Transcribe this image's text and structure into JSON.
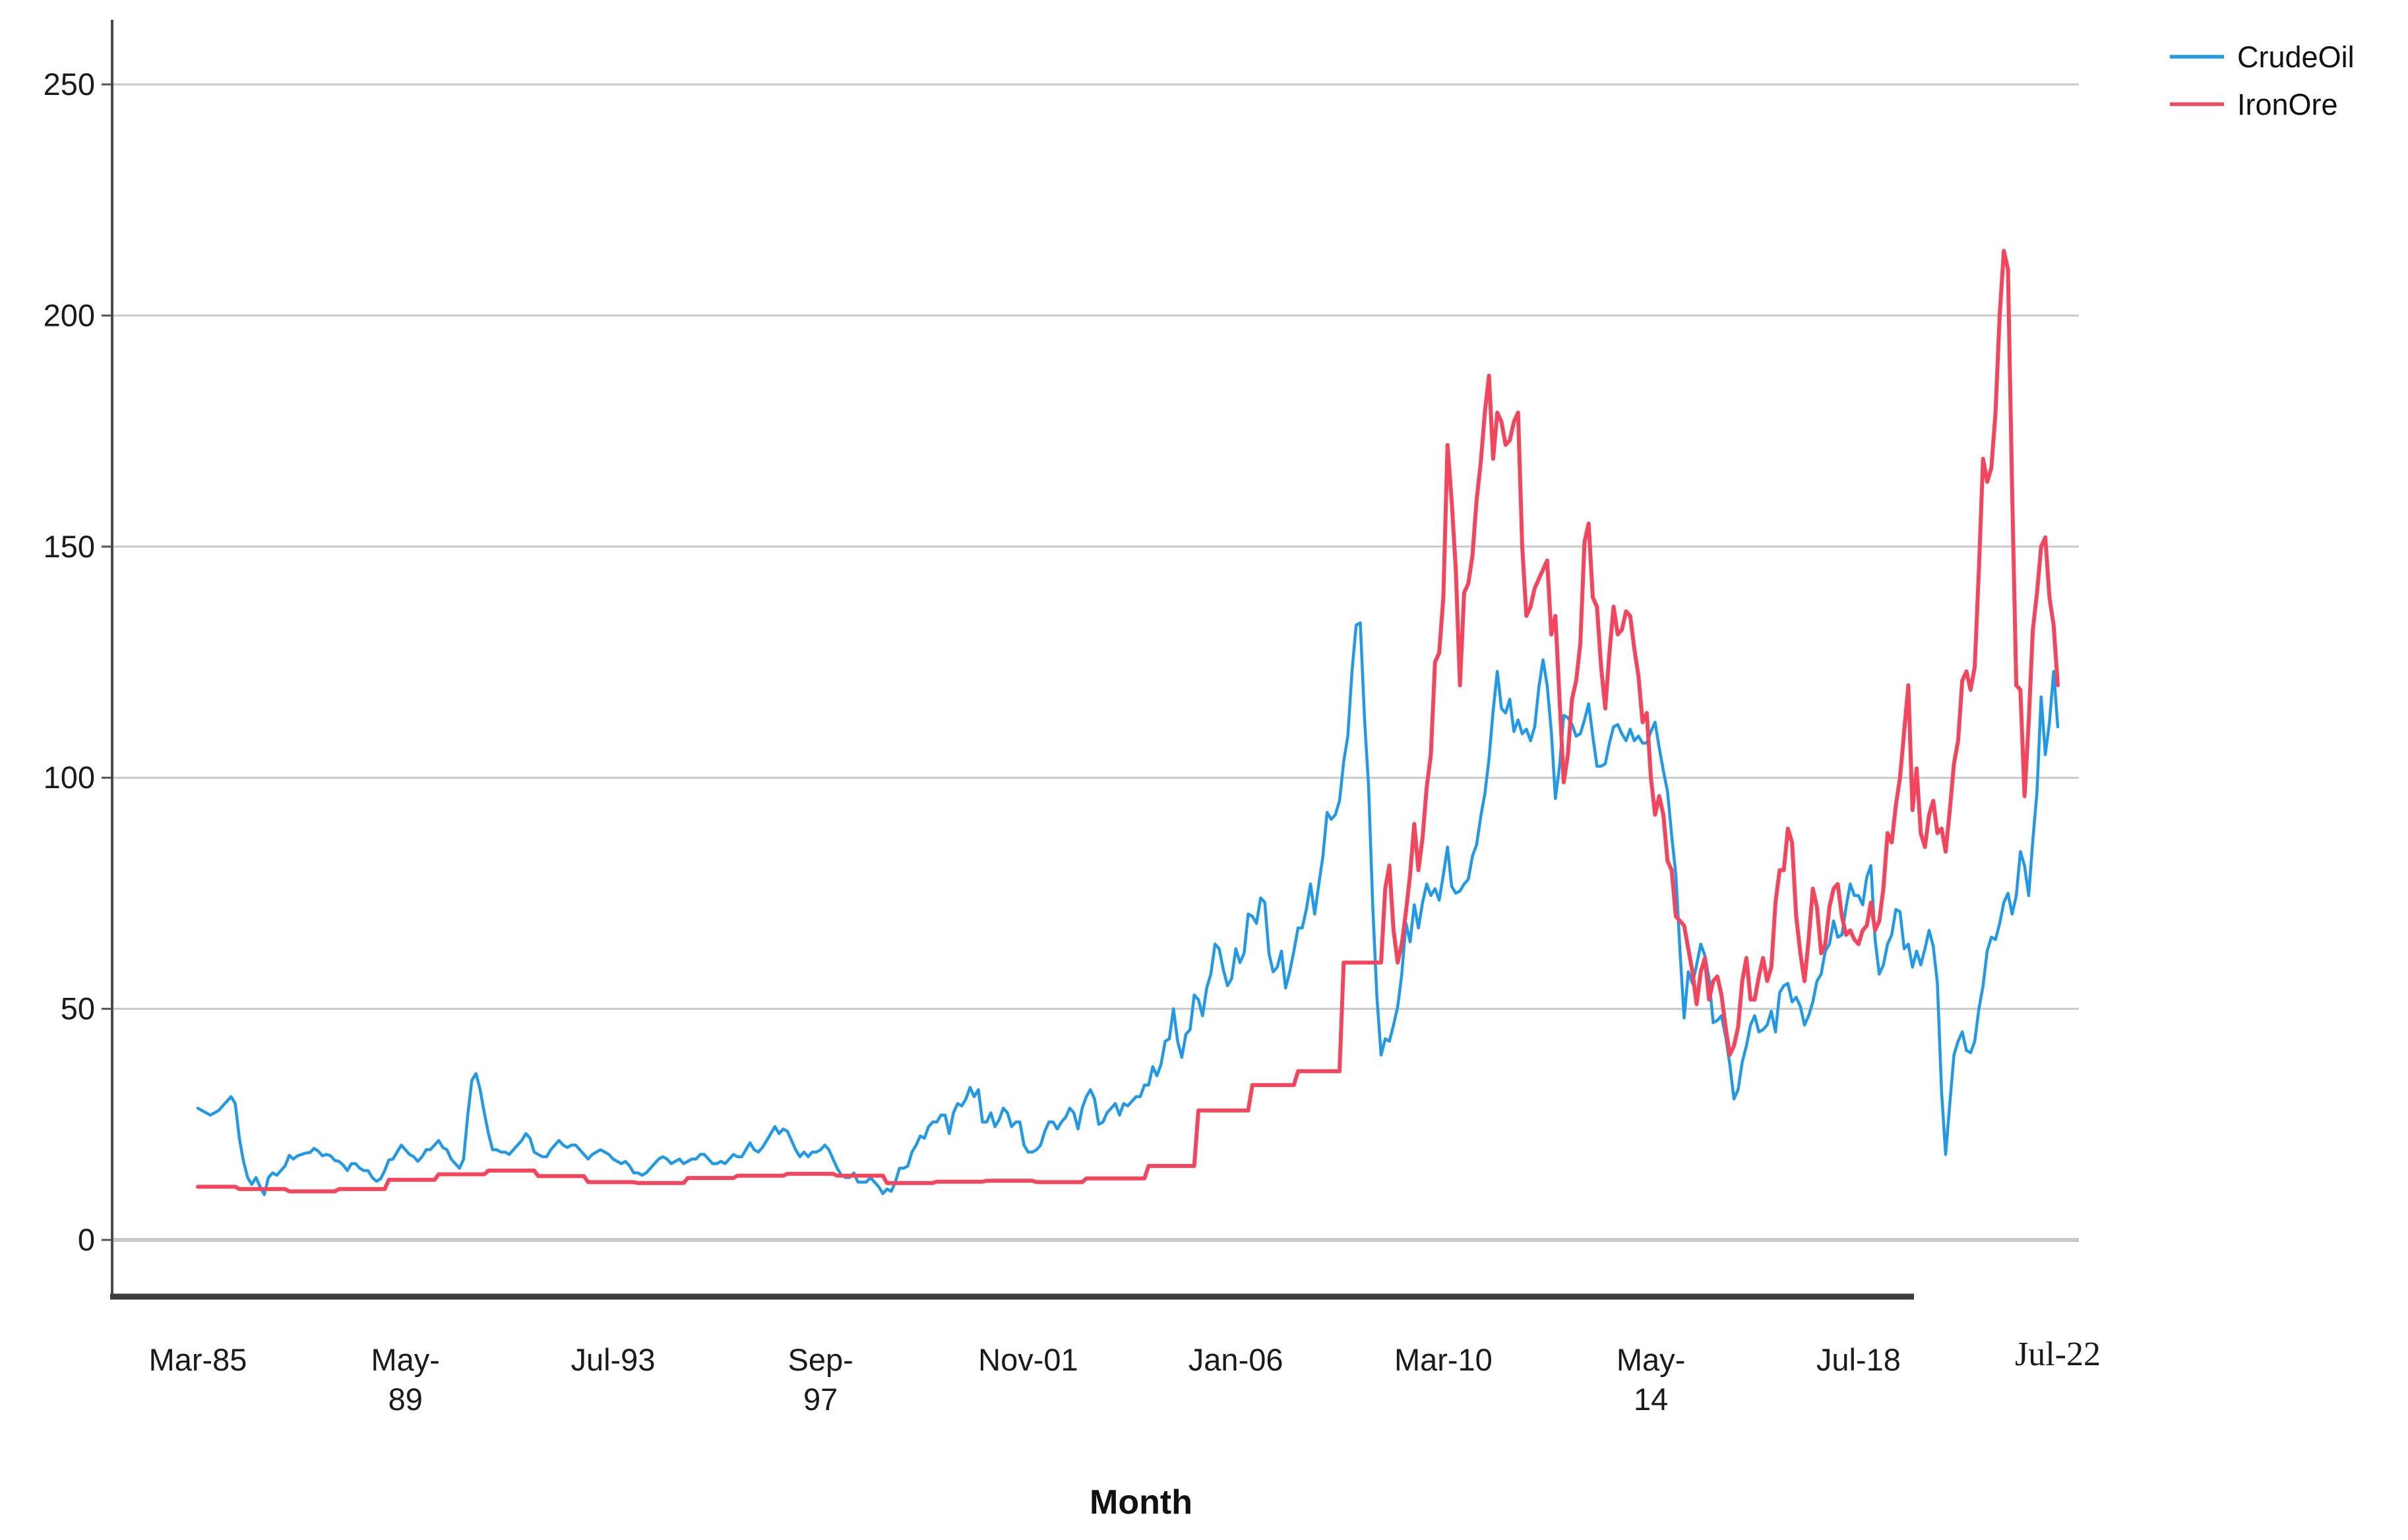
{
  "chart_data": {
    "type": "line",
    "title": "",
    "xlabel": "Month",
    "ylabel": "",
    "frequency": "monthly",
    "x_start": "Mar-1985",
    "x_end": "Jul-2022",
    "ylim": [
      0,
      262
    ],
    "y_ticks": [
      0,
      50,
      100,
      150,
      200,
      250
    ],
    "grid": "horizontal-only",
    "legend_position": "top-right",
    "axis_color": "#3d3d3d",
    "gridline_color": "#c9c9c9",
    "x_tick_months_from_start": [
      0,
      50,
      100,
      150,
      200,
      250,
      300,
      350,
      400,
      448
    ],
    "x_tick_labels": [
      [
        "Mar-85"
      ],
      [
        "May-",
        "89"
      ],
      [
        "Jul-93"
      ],
      [
        "Sep-",
        "97"
      ],
      [
        "Nov-01"
      ],
      [
        "Jan-06"
      ],
      [
        "Mar-10"
      ],
      [
        "May-",
        "14"
      ],
      [
        "Jul-18"
      ],
      [
        "Jul-22"
      ]
    ],
    "series": [
      {
        "name": "CrudeOil",
        "color": "#2099E8",
        "values": [
          28.5,
          28,
          27.5,
          27,
          27.5,
          28,
          29,
          30,
          31,
          29.5,
          22,
          17,
          13.5,
          12,
          13.5,
          11.5,
          9.8,
          13.5,
          14.5,
          14,
          15,
          16,
          18.3,
          17.5,
          18.2,
          18.5,
          18.8,
          18.9,
          19.8,
          19.2,
          18.2,
          18.5,
          18.2,
          17.2,
          17,
          16.2,
          15,
          16.5,
          16.5,
          15.5,
          15,
          15,
          13.5,
          12.7,
          13.2,
          15,
          17.3,
          17.5,
          19,
          20.5,
          19.5,
          18.5,
          18,
          17,
          18,
          19.5,
          19.5,
          20.5,
          21.5,
          20,
          19.5,
          17.5,
          16.5,
          15.5,
          17.5,
          27,
          34.5,
          36,
          32.5,
          27.5,
          23,
          19.5,
          19.5,
          19,
          19,
          18.5,
          19.5,
          20.5,
          21.5,
          23,
          22,
          19,
          18.5,
          18,
          18,
          19.5,
          20.5,
          21.5,
          20.5,
          20,
          20.5,
          20.5,
          19.5,
          18.5,
          17.5,
          18.5,
          19,
          19.5,
          19,
          18.5,
          17.5,
          17,
          16.5,
          17,
          16,
          14.5,
          14.5,
          14,
          14.5,
          15.5,
          16.5,
          17.5,
          18,
          17.5,
          16.5,
          17,
          17.5,
          16.5,
          17,
          17.5,
          17.5,
          18.5,
          18.5,
          17.5,
          16.5,
          16.5,
          17,
          16.5,
          17.5,
          18.5,
          18,
          18,
          19.5,
          21,
          19.5,
          19,
          20,
          21.5,
          23,
          24.5,
          23,
          24,
          23.5,
          21.5,
          19.5,
          18,
          19,
          18,
          19,
          19,
          19.5,
          20.5,
          19.5,
          17.5,
          15.5,
          14,
          13.5,
          13.5,
          14.5,
          12.5,
          12.5,
          12.5,
          13.5,
          12.5,
          11.5,
          10,
          11,
          10.5,
          12.5,
          15.5,
          15.5,
          16,
          19,
          20.5,
          22.5,
          22,
          24.5,
          25.5,
          25.5,
          27,
          27,
          23,
          27.5,
          29.5,
          29,
          30.5,
          33,
          31,
          32.5,
          25.5,
          25.5,
          27.5,
          24.5,
          26,
          28.5,
          27.5,
          24.5,
          25.5,
          25.5,
          20.5,
          19,
          19,
          19.5,
          20.5,
          23.5,
          25.5,
          25.5,
          24,
          25.5,
          26.5,
          28.5,
          27.5,
          24,
          28.5,
          31,
          32.5,
          30.5,
          25,
          25.5,
          27.5,
          28.5,
          29.5,
          27,
          29.5,
          29,
          30,
          31,
          31,
          33.5,
          33.5,
          37.5,
          35.5,
          38,
          43,
          43.5,
          50,
          43,
          39.5,
          44.5,
          45.5,
          53,
          52,
          48.5,
          54.5,
          57.5,
          64,
          63,
          58.5,
          55,
          56.5,
          63,
          60,
          62,
          70.5,
          70,
          68.5,
          74,
          73,
          62,
          58,
          59,
          62.5,
          54.5,
          58,
          62.5,
          67.5,
          67.5,
          71.5,
          77,
          70.5,
          77,
          83,
          92.5,
          91,
          92,
          95,
          103.5,
          109,
          123,
          133,
          133.5,
          113,
          98,
          72,
          52.5,
          40,
          43.5,
          43,
          46.5,
          50.5,
          57.5,
          68.5,
          64.5,
          72.5,
          67.5,
          73,
          77,
          74.5,
          76,
          73.5,
          79,
          85,
          76.5,
          75,
          75.5,
          77,
          78,
          83,
          85.5,
          91.5,
          96.5,
          104,
          114.5,
          123,
          115,
          114,
          117,
          110,
          112.5,
          109.5,
          110.5,
          108,
          111,
          119.5,
          125.5,
          120,
          110,
          95.5,
          102.5,
          113.5,
          113,
          111.5,
          109,
          109.5,
          112.5,
          116,
          109,
          102.5,
          102.5,
          103,
          107.5,
          111,
          111.5,
          109.5,
          108,
          110.5,
          108,
          109,
          107.5,
          107.5,
          110,
          112,
          106.5,
          101.5,
          97,
          87.5,
          79,
          62.5,
          48,
          58,
          55.5,
          59.5,
          64,
          61.5,
          56.5,
          47,
          47.5,
          48.5,
          44,
          38,
          30.5,
          32.5,
          38.5,
          42,
          46.5,
          48.5,
          45,
          45.5,
          46.5,
          49.5,
          45,
          53.5,
          55,
          55.5,
          51.5,
          52.5,
          50.5,
          46.5,
          48.5,
          51.5,
          56,
          57.5,
          62.5,
          64,
          69,
          65.5,
          66,
          72,
          77,
          74.5,
          74.5,
          72.5,
          78.5,
          81,
          65,
          57.5,
          59.5,
          64,
          66,
          71.5,
          71,
          63,
          64,
          59,
          62.5,
          59.5,
          63,
          67,
          63.5,
          55.5,
          32,
          18.5,
          29.5,
          40,
          43,
          45,
          41,
          40.5,
          43,
          50,
          55,
          62.5,
          65.5,
          65,
          68.5,
          73,
          75,
          70.5,
          74.5,
          84,
          81,
          74.5,
          86.5,
          97,
          117.5,
          105,
          112,
          123,
          111
        ]
      },
      {
        "name": "IronOre",
        "color": "#F5455C",
        "values": [
          11.5,
          11.5,
          11.5,
          11.5,
          11.5,
          11.5,
          11.5,
          11.5,
          11.5,
          11.5,
          11,
          11,
          11,
          11,
          11,
          11,
          11,
          11,
          11,
          11,
          11,
          11,
          10.5,
          10.5,
          10.5,
          10.5,
          10.5,
          10.5,
          10.5,
          10.5,
          10.5,
          10.5,
          10.5,
          10.5,
          11,
          11,
          11,
          11,
          11,
          11,
          11,
          11,
          11,
          11,
          11,
          11,
          13,
          13,
          13,
          13,
          13,
          13,
          13,
          13,
          13,
          13,
          13,
          13,
          14.2,
          14.2,
          14.2,
          14.2,
          14.2,
          14.2,
          14.2,
          14.2,
          14.2,
          14.2,
          14.2,
          14.2,
          15,
          15,
          15,
          15,
          15,
          15,
          15,
          15,
          15,
          15,
          15,
          15,
          13.8,
          13.8,
          13.8,
          13.8,
          13.8,
          13.8,
          13.8,
          13.8,
          13.8,
          13.8,
          13.8,
          13.8,
          12.5,
          12.5,
          12.5,
          12.5,
          12.5,
          12.5,
          12.5,
          12.5,
          12.5,
          12.5,
          12.5,
          12.5,
          12.3,
          12.3,
          12.3,
          12.3,
          12.3,
          12.3,
          12.3,
          12.3,
          12.3,
          12.3,
          12.3,
          12.3,
          13.4,
          13.4,
          13.4,
          13.4,
          13.4,
          13.4,
          13.4,
          13.4,
          13.4,
          13.4,
          13.4,
          13.4,
          13.9,
          13.9,
          13.9,
          13.9,
          13.9,
          13.9,
          13.9,
          13.9,
          13.9,
          13.9,
          13.9,
          13.9,
          14.3,
          14.3,
          14.3,
          14.3,
          14.3,
          14.3,
          14.3,
          14.3,
          14.3,
          14.3,
          14.3,
          14.3,
          13.9,
          13.9,
          13.9,
          13.9,
          13.9,
          13.9,
          13.9,
          13.9,
          13.9,
          13.9,
          13.9,
          13.9,
          12.3,
          12.3,
          12.3,
          12.3,
          12.3,
          12.3,
          12.3,
          12.3,
          12.3,
          12.3,
          12.3,
          12.3,
          12.6,
          12.6,
          12.6,
          12.6,
          12.6,
          12.6,
          12.6,
          12.6,
          12.6,
          12.6,
          12.6,
          12.6,
          12.8,
          12.8,
          12.8,
          12.8,
          12.8,
          12.8,
          12.8,
          12.8,
          12.8,
          12.8,
          12.8,
          12.8,
          12.5,
          12.5,
          12.5,
          12.5,
          12.5,
          12.5,
          12.5,
          12.5,
          12.5,
          12.5,
          12.5,
          12.5,
          13.3,
          13.3,
          13.3,
          13.3,
          13.3,
          13.3,
          13.3,
          13.3,
          13.3,
          13.3,
          13.3,
          13.3,
          13.3,
          13.3,
          13.3,
          16,
          16,
          16,
          16,
          16,
          16,
          16,
          16,
          16,
          16,
          16,
          16,
          28,
          28,
          28,
          28,
          28,
          28,
          28,
          28,
          28,
          28,
          28,
          28,
          28,
          33.5,
          33.5,
          33.5,
          33.5,
          33.5,
          33.5,
          33.5,
          33.5,
          33.5,
          33.5,
          33.5,
          36.5,
          36.5,
          36.5,
          36.5,
          36.5,
          36.5,
          36.5,
          36.5,
          36.5,
          36.5,
          36.5,
          60,
          60,
          60,
          60,
          60,
          60,
          60,
          60,
          60,
          60,
          76,
          81,
          67,
          60,
          64,
          71,
          79,
          90,
          80,
          87,
          98,
          105,
          125,
          127,
          139,
          172,
          160,
          145,
          120,
          140,
          142,
          148,
          160,
          168,
          179,
          187,
          169,
          179,
          177,
          172,
          173,
          177,
          179,
          150,
          135,
          137,
          141,
          143,
          145,
          147,
          131,
          135,
          117,
          99,
          105,
          117,
          121,
          129,
          151,
          155,
          139,
          137,
          124,
          115,
          127,
          137,
          131,
          132,
          136,
          135,
          128,
          122,
          112,
          114,
          100,
          92,
          96,
          92,
          82,
          80,
          70,
          69,
          68,
          63,
          58,
          51,
          58,
          61,
          52,
          56,
          57,
          53,
          46,
          40,
          42,
          46,
          56,
          61,
          52,
          52,
          57,
          61,
          56,
          59,
          73,
          80,
          80,
          89,
          86,
          70,
          62,
          56,
          65,
          76,
          72,
          62,
          64,
          72,
          76,
          77,
          70,
          66,
          67,
          65,
          64,
          67,
          68,
          73,
          67,
          69,
          76,
          88,
          86,
          94,
          100,
          110,
          120,
          93,
          102,
          88,
          85,
          92,
          95,
          88,
          89,
          84,
          93,
          103,
          108,
          121,
          123,
          119,
          124,
          145,
          169,
          164,
          167,
          179,
          200,
          214,
          210,
          162,
          120,
          119,
          96,
          112,
          132,
          140,
          150,
          152,
          139,
          133,
          120
        ]
      }
    ]
  }
}
